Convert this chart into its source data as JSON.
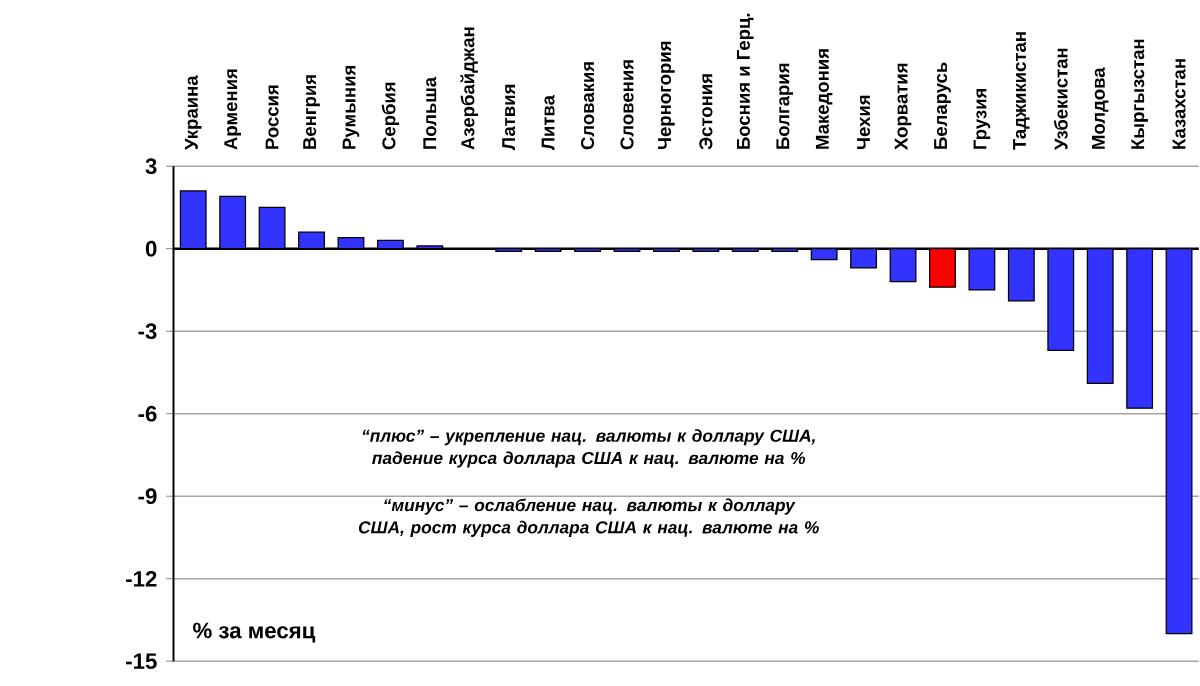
{
  "chart_data": {
    "type": "bar",
    "ylabel": "% за месяц",
    "categories": [
      "Украина",
      "Армения",
      "Россия",
      "Венгрия",
      "Румыния",
      "Сербия",
      "Польша",
      "Азербайджан",
      "Латвия",
      "Литва",
      "Словакия",
      "Словения",
      "Черногория",
      "Эстония",
      "Босния и Герц.",
      "Болгария",
      "Македония",
      "Чехия",
      "Хорватия",
      "Беларусь",
      "Грузия",
      "Таджикистан",
      "Узбекистан",
      "Молдова",
      "Кыргызстан",
      "Казахстан"
    ],
    "values": [
      2.1,
      1.9,
      1.5,
      0.6,
      0.4,
      0.3,
      0.1,
      0,
      -0.1,
      -0.1,
      -0.1,
      -0.1,
      -0.1,
      -0.1,
      -0.1,
      -0.1,
      -0.4,
      -0.7,
      -1.2,
      -1.4,
      -1.5,
      -1.9,
      -3.7,
      -4.9,
      -5.8,
      -14.0
    ],
    "colors": [
      "#3333ff",
      "#3333ff",
      "#3333ff",
      "#3333ff",
      "#3333ff",
      "#3333ff",
      "#3333ff",
      "#3333ff",
      "#3333ff",
      "#3333ff",
      "#3333ff",
      "#3333ff",
      "#3333ff",
      "#3333ff",
      "#3333ff",
      "#3333ff",
      "#3333ff",
      "#3333ff",
      "#3333ff",
      "#ff0000",
      "#3333ff",
      "#3333ff",
      "#3333ff",
      "#3333ff",
      "#3333ff",
      "#3333ff"
    ],
    "ylim": [
      -15,
      3
    ],
    "yticks": [
      3,
      0,
      -3,
      -6,
      -9,
      -12,
      -15
    ],
    "grid": "y",
    "annotations": [
      "“плюс” – укрепление нац. валюты к доллару США, падение курса доллара США к нац. валюте на %",
      "“минус” – ослабление нац. валюты к доллару США, рост курса доллара США к нац. валюте на %"
    ]
  }
}
